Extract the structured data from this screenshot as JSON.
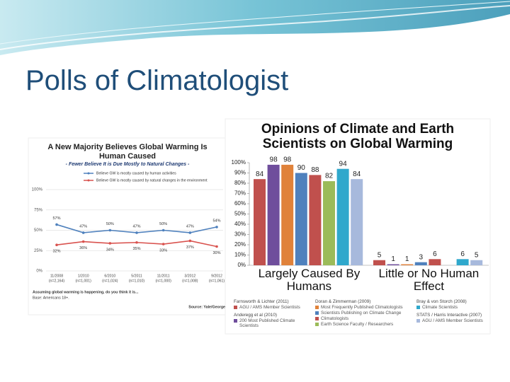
{
  "title": "Polls of Climatologist",
  "chart_data": [
    {
      "type": "line",
      "title": "A New Majority Believes Global Warming Is Human Caused",
      "subtitle": "- Fewer Believe It is Due Mostly to Natural Changes -",
      "categories": [
        "11/2008",
        "1/2010",
        "6/2010",
        "5/2011",
        "11/2011",
        "3/2012",
        "9/2012"
      ],
      "n_labels": [
        "(n=2,164)",
        "(n=1,001)",
        "(n=1,024)",
        "(n=1,010)",
        "(n=1,000)",
        "(n=1,008)",
        "(n=1,061)"
      ],
      "series": [
        {
          "name": "Believe GW is mostly caused by human activities",
          "color": "#4f81bd",
          "values": [
            57,
            47,
            50,
            47,
            50,
            47,
            54
          ],
          "value_labels": [
            "57%",
            "47%",
            "50%",
            "47%",
            "50%",
            "47%",
            "54%"
          ]
        },
        {
          "name": "Believe GW is mostly caused by natural changes in the environment",
          "color": "#d9534f",
          "values": [
            32,
            36,
            34,
            35,
            33,
            37,
            30
          ],
          "value_labels": [
            "32%",
            "36%",
            "34%",
            "35%",
            "33%",
            "37%",
            "30%"
          ]
        }
      ],
      "ylim": [
        0,
        100
      ],
      "yticks": [
        {
          "value": 0,
          "label": "0%"
        },
        {
          "value": 25,
          "label": "25%"
        },
        {
          "value": 50,
          "label": "50%"
        },
        {
          "value": 75,
          "label": "75%"
        },
        {
          "value": 100,
          "label": "100%"
        }
      ],
      "grid": true,
      "notes": [
        "Assuming global warming is happening, do you think it is...",
        "Base: Americans 18+."
      ],
      "source": "Source: Yale/George"
    },
    {
      "type": "bar",
      "title": "Opinions of Climate and Earth Scientists on Global Warming",
      "categories": [
        "Largely Caused By Humans",
        "Little or No Human Effect"
      ],
      "series": [
        {
          "source": "Farnsworth & Lichter (2011)",
          "name": "AGU / AMS Member Scientists",
          "color": "#c0504d",
          "values": [
            84,
            5
          ]
        },
        {
          "source": "Anderegg et al (2010)",
          "name": "200 Most Published Climate Scientists",
          "color": "#6f4e9c",
          "values": [
            98,
            1
          ]
        },
        {
          "source": "Doran & Zimmerman (2009)",
          "name": "Most Frequently Published Climatologists",
          "color": "#e0823a",
          "values": [
            98,
            1
          ]
        },
        {
          "name": "Scientists Publishing on Climate Change",
          "color": "#4f81bd",
          "values": [
            90,
            3
          ]
        },
        {
          "name": "Climatologists",
          "color": "#c0504d",
          "values": [
            88,
            6
          ]
        },
        {
          "name": "Earth Science Faculty / Researchers",
          "color": "#9bbb59",
          "values": [
            82,
            null
          ]
        },
        {
          "source": "Bray & von Storch (2008)",
          "name": "Climate Scientists",
          "color": "#2fa8cc",
          "values": [
            94,
            6
          ]
        },
        {
          "source": "STATS / Harris Interactive (2007)",
          "name": "AGU / AMS Member Scientists",
          "color": "#a7b9dc",
          "values": [
            84,
            5
          ]
        }
      ],
      "ylim": [
        0,
        100
      ],
      "yticks": [
        {
          "value": 0,
          "label": "0%"
        },
        {
          "value": 10,
          "label": "10%"
        },
        {
          "value": 20,
          "label": "20%"
        },
        {
          "value": 30,
          "label": "30%"
        },
        {
          "value": 40,
          "label": "40%"
        },
        {
          "value": 50,
          "label": "50%"
        },
        {
          "value": 60,
          "label": "60%"
        },
        {
          "value": 70,
          "label": "70%"
        },
        {
          "value": 80,
          "label": "80%"
        },
        {
          "value": 90,
          "label": "90%"
        },
        {
          "value": 100,
          "label": "100%"
        }
      ]
    }
  ]
}
